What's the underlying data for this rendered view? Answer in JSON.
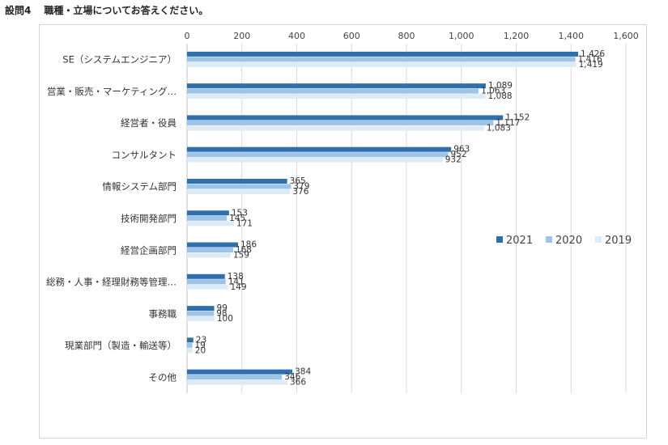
{
  "question": {
    "number": "設問4",
    "text": "職種・立場についてお答えください。"
  },
  "chart_data": {
    "type": "bar",
    "orientation": "horizontal",
    "categories": [
      "SE（システムエンジニア）",
      "営業・販売・マーケティング…",
      "経営者・役員",
      "コンサルタント",
      "情報システム部門",
      "技術開発部門",
      "経営企画部門",
      "総務・人事・経理財務等管理…",
      "事務職",
      "現業部門（製造・輸送等）",
      "その他"
    ],
    "series": [
      {
        "name": "2021",
        "color": "#2e6fad",
        "values": [
          1426,
          1089,
          1152,
          963,
          365,
          153,
          186,
          138,
          99,
          23,
          384
        ]
      },
      {
        "name": "2020",
        "color": "#9dc3e6",
        "values": [
          1416,
          1063,
          1117,
          952,
          379,
          145,
          168,
          141,
          98,
          19,
          346
        ]
      },
      {
        "name": "2019",
        "color": "#ddebf7",
        "values": [
          1419,
          1088,
          1083,
          932,
          376,
          171,
          159,
          149,
          100,
          20,
          366
        ]
      }
    ],
    "value_labels": [
      [
        "1,426",
        "1,416",
        "1,419"
      ],
      [
        "1,089",
        "1,063",
        "1,088"
      ],
      [
        "1,152",
        "1,117",
        "1,083"
      ],
      [
        "963",
        "952",
        "932"
      ],
      [
        "365",
        "379",
        "376"
      ],
      [
        "153",
        "145",
        "171"
      ],
      [
        "186",
        "168",
        "159"
      ],
      [
        "138",
        "141",
        "149"
      ],
      [
        "99",
        "98",
        "100"
      ],
      [
        "23",
        "19",
        "20"
      ],
      [
        "384",
        "346",
        "366"
      ]
    ],
    "xlim": [
      0,
      1600
    ],
    "x_ticks": [
      "0",
      "200",
      "400",
      "600",
      "800",
      "1,000",
      "1,200",
      "1,400",
      "1,600"
    ],
    "x_tick_values": [
      0,
      200,
      400,
      600,
      800,
      1000,
      1200,
      1400,
      1600
    ],
    "axis_position": "top",
    "grid": true,
    "legend_position": "right"
  }
}
